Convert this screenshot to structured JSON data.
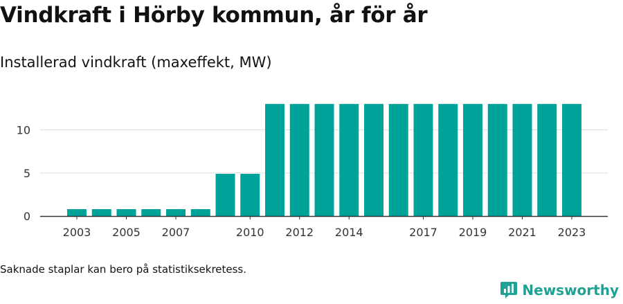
{
  "title": "Vindkraft i Hörby kommun, år för år",
  "subtitle": "Installerad vindkraft (maxeffekt, MW)",
  "footnote": "Saknade staplar kan bero på statistiksekretess.",
  "brand": {
    "name": "Newsworthy",
    "color": "#1fa295"
  },
  "chart_data": {
    "type": "bar",
    "categories": [
      "2003",
      "2004",
      "2005",
      "2006",
      "2007",
      "2008",
      "2009",
      "2010",
      "2011",
      "2012",
      "2013",
      "2014",
      "2015",
      "2016",
      "2017",
      "2018",
      "2019",
      "2020",
      "2021",
      "2022",
      "2023"
    ],
    "values": [
      0.8,
      0.8,
      0.8,
      0.8,
      0.8,
      0.8,
      4.9,
      4.9,
      13,
      13,
      13,
      13,
      13,
      13,
      13,
      13,
      13,
      13,
      13,
      13,
      13
    ],
    "x_tick_labels": [
      "2003",
      "2005",
      "2007",
      "2010",
      "2012",
      "2014",
      "2017",
      "2019",
      "2021",
      "2023"
    ],
    "y_ticks": [
      0,
      5,
      10
    ],
    "ylim": [
      0,
      13
    ],
    "bar_color": "#00a39a",
    "grid": true,
    "legend": "none"
  }
}
